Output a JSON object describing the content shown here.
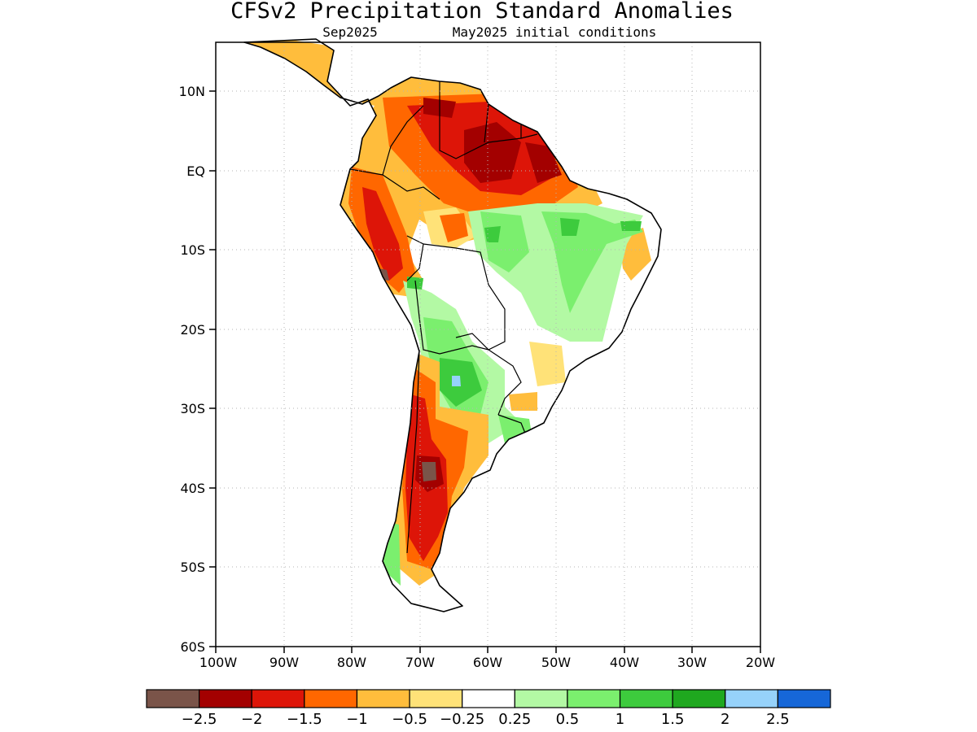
{
  "title": "CFSv2 Precipitation Standard Anomalies",
  "subtitle_left": "Sep2025",
  "subtitle_right": "May2025 initial conditions",
  "lat_ticks": [
    "10N",
    "EQ",
    "10S",
    "20S",
    "30S",
    "40S",
    "50S",
    "60S"
  ],
  "lon_ticks": [
    "100W",
    "90W",
    "80W",
    "70W",
    "60W",
    "50W",
    "40W",
    "30W",
    "20W"
  ],
  "colorbar": {
    "colors": [
      "#7a5449",
      "#a30000",
      "#dd1508",
      "#ff6700",
      "#ffbd3c",
      "#ffe278",
      "#ffffff",
      "#b3f9a4",
      "#7bef6e",
      "#3dcb3d",
      "#1fa81f",
      "#96d2fa",
      "#1667d8"
    ],
    "labels": [
      "-2.5",
      "-2",
      "-1.5",
      "-1",
      "-0.5",
      "-0.25",
      "0.25",
      "0.5",
      "1",
      "1.5",
      "2",
      "2.5"
    ]
  },
  "anomaly_fields": [
    {
      "region": "Northern South America (Venezuela/Guianas)",
      "category": "-1.5"
    },
    {
      "region": "Eastern Amazon mouth",
      "category": "-2"
    },
    {
      "region": "Peru/Ecuador Andes",
      "category": "-1.5"
    },
    {
      "region": "Central Brazil",
      "category": "1"
    },
    {
      "region": "Paraguay / N Argentina",
      "category": "1.5"
    },
    {
      "region": "Uruguay",
      "category": "1"
    },
    {
      "region": "Central Chile / W Argentina",
      "category": "-2.5"
    },
    {
      "region": "Southern Patagonia",
      "category": "-1.5"
    }
  ]
}
